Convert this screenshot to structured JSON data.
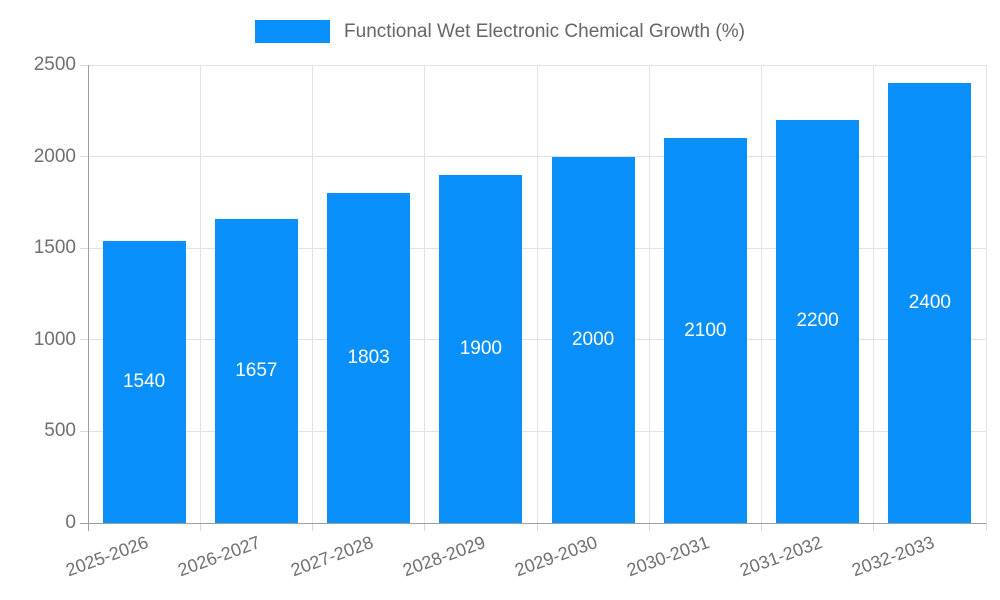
{
  "legend": {
    "label": "Functional Wet Electronic Chemical Growth (%)"
  },
  "colors": {
    "bar": "#0A90FA",
    "grid": "#E3E3E3",
    "tick": "#D9D9D9",
    "axis_line": "#9E9E9E",
    "tick_text": "#707070",
    "legend_text": "#666666",
    "value_text": "#FFFFFF",
    "background": "#FFFFFF"
  },
  "chart_data": {
    "type": "bar",
    "title": "",
    "legend_label": "Functional Wet Electronic Chemical Growth (%)",
    "legend_position": "top",
    "categories": [
      "2025-2026",
      "2026-2027",
      "2027-2028",
      "2028-2029",
      "2029-2030",
      "2030-2031",
      "2031-2032",
      "2032-2033"
    ],
    "values": [
      1540,
      1657,
      1803,
      1900,
      2000,
      2100,
      2200,
      2400
    ],
    "xlabel": "",
    "ylabel": "",
    "ylim": [
      0,
      2500
    ],
    "yticks": [
      0,
      500,
      1000,
      1500,
      2000,
      2500
    ],
    "grid": true,
    "bar_color": "#0A90FA",
    "value_labels": "inside-center",
    "x_tick_rotation_deg": -20
  }
}
